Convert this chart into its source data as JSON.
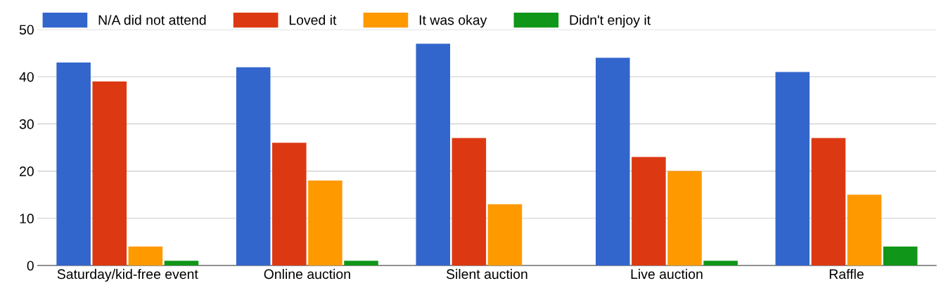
{
  "chart_data": {
    "type": "bar",
    "categories": [
      "Saturday/kid-free event",
      "Online auction",
      "Silent auction",
      "Live auction",
      "Raffle"
    ],
    "series": [
      {
        "name": "N/A did not attend",
        "color": "#3366cc",
        "values": [
          43,
          42,
          47,
          44,
          41
        ]
      },
      {
        "name": "Loved it",
        "color": "#dc3912",
        "values": [
          39,
          26,
          27,
          23,
          27
        ]
      },
      {
        "name": "It was okay",
        "color": "#ff9900",
        "values": [
          4,
          18,
          13,
          20,
          15
        ]
      },
      {
        "name": "Didn't enjoy it",
        "color": "#109618",
        "values": [
          1,
          1,
          0,
          1,
          4
        ]
      }
    ],
    "ylim": [
      0,
      50
    ],
    "yticks": [
      0,
      10,
      20,
      30,
      40,
      50
    ],
    "grid": "y",
    "legend": "top left"
  }
}
